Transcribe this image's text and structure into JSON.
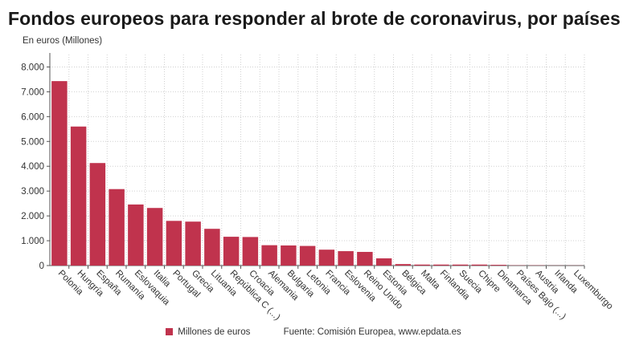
{
  "title": "Fondos europeos para responder al brote de coronavirus, por países",
  "unit_label": "En euros (Millones)",
  "legend": {
    "series_name": "Millones de euros",
    "color": "#c0334d"
  },
  "source": "Fuente: Comisión Europea, www.epdata.es",
  "chart_data": {
    "type": "bar",
    "title": "Fondos europeos para responder al brote de coronavirus, por países",
    "ylabel": "En euros (Millones)",
    "xlabel": "",
    "ylim": [
      0,
      8500
    ],
    "yticks": [
      0,
      1000,
      2000,
      3000,
      4000,
      5000,
      6000,
      7000,
      8000
    ],
    "ytick_labels": [
      "0",
      "1.000",
      "2.000",
      "3.000",
      "4.000",
      "5.000",
      "6.000",
      "7.000",
      "8.000"
    ],
    "grid": true,
    "legend_position": "bottom",
    "categories": [
      "Polonia",
      "Hungría",
      "España",
      "Rumanía",
      "Eslovaquia",
      "Italia",
      "Portugal",
      "Grecia",
      "Lituania",
      "República C (...)",
      "Croacia",
      "Alemania",
      "Bulgaria",
      "Letonia",
      "Francia",
      "Eslovenia",
      "Reino Unido",
      "Estonia",
      "Bélgica",
      "Malta",
      "Finlandia",
      "Suecia",
      "Chipre",
      "Dinamarca",
      "Países Bajo (...)",
      "Austria",
      "Irlanda",
      "Luxemburgo"
    ],
    "series": [
      {
        "name": "Millones de euros",
        "color": "#c0334d",
        "values": [
          7430,
          5600,
          4130,
          3080,
          2460,
          2320,
          1800,
          1770,
          1480,
          1160,
          1150,
          820,
          810,
          790,
          640,
          580,
          550,
          290,
          60,
          40,
          40,
          40,
          40,
          30,
          10,
          10,
          5,
          5
        ]
      }
    ]
  }
}
